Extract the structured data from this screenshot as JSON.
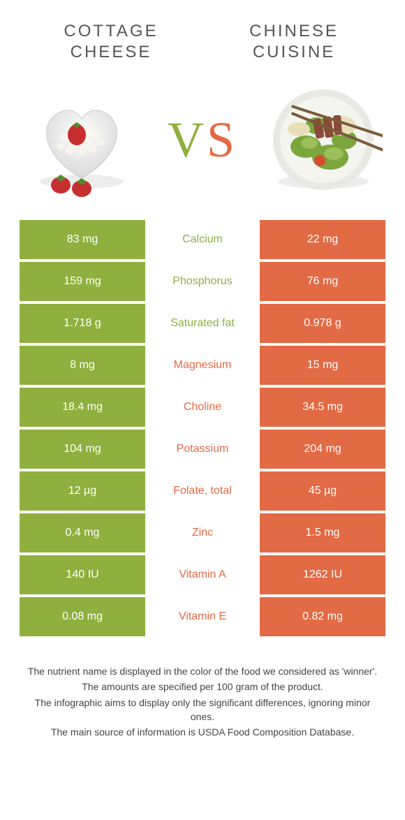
{
  "colors": {
    "left": "#8fb03e",
    "right": "#e26a45",
    "title": "#555555",
    "footnote": "#444444",
    "background": "#ffffff"
  },
  "typography": {
    "title_fontsize": 24,
    "title_letter_spacing": 3,
    "vs_fontsize": 72,
    "cell_fontsize": 16,
    "footnote_fontsize": 14
  },
  "foods": {
    "left": {
      "title_line1": "COTTAGE",
      "title_line2": "CHEESE"
    },
    "right": {
      "title_line1": "CHINESE",
      "title_line2": "CUISINE"
    }
  },
  "vs": {
    "v": "V",
    "s": "S"
  },
  "nutrients": [
    {
      "name": "Calcium",
      "left": "83 mg",
      "right": "22 mg",
      "winner": "left"
    },
    {
      "name": "Phosphorus",
      "left": "159 mg",
      "right": "76 mg",
      "winner": "left"
    },
    {
      "name": "Saturated fat",
      "left": "1.718 g",
      "right": "0.978 g",
      "winner": "left"
    },
    {
      "name": "Magnesium",
      "left": "8 mg",
      "right": "15 mg",
      "winner": "right"
    },
    {
      "name": "Choline",
      "left": "18.4 mg",
      "right": "34.5 mg",
      "winner": "right"
    },
    {
      "name": "Potassium",
      "left": "104 mg",
      "right": "204 mg",
      "winner": "right"
    },
    {
      "name": "Folate, total",
      "left": "12 µg",
      "right": "45 µg",
      "winner": "right"
    },
    {
      "name": "Zinc",
      "left": "0.4 mg",
      "right": "1.5 mg",
      "winner": "right"
    },
    {
      "name": "Vitamin A",
      "left": "140 IU",
      "right": "1262 IU",
      "winner": "right"
    },
    {
      "name": "Vitamin E",
      "left": "0.08 mg",
      "right": "0.82 mg",
      "winner": "right"
    }
  ],
  "footnotes": [
    "The nutrient name is displayed in the color of the food we considered as 'winner'.",
    "The amounts are specified per 100 gram of the product.",
    "The infographic aims to display only the significant differences, ignoring minor ones.",
    "The main source of information is USDA Food Composition Database."
  ]
}
